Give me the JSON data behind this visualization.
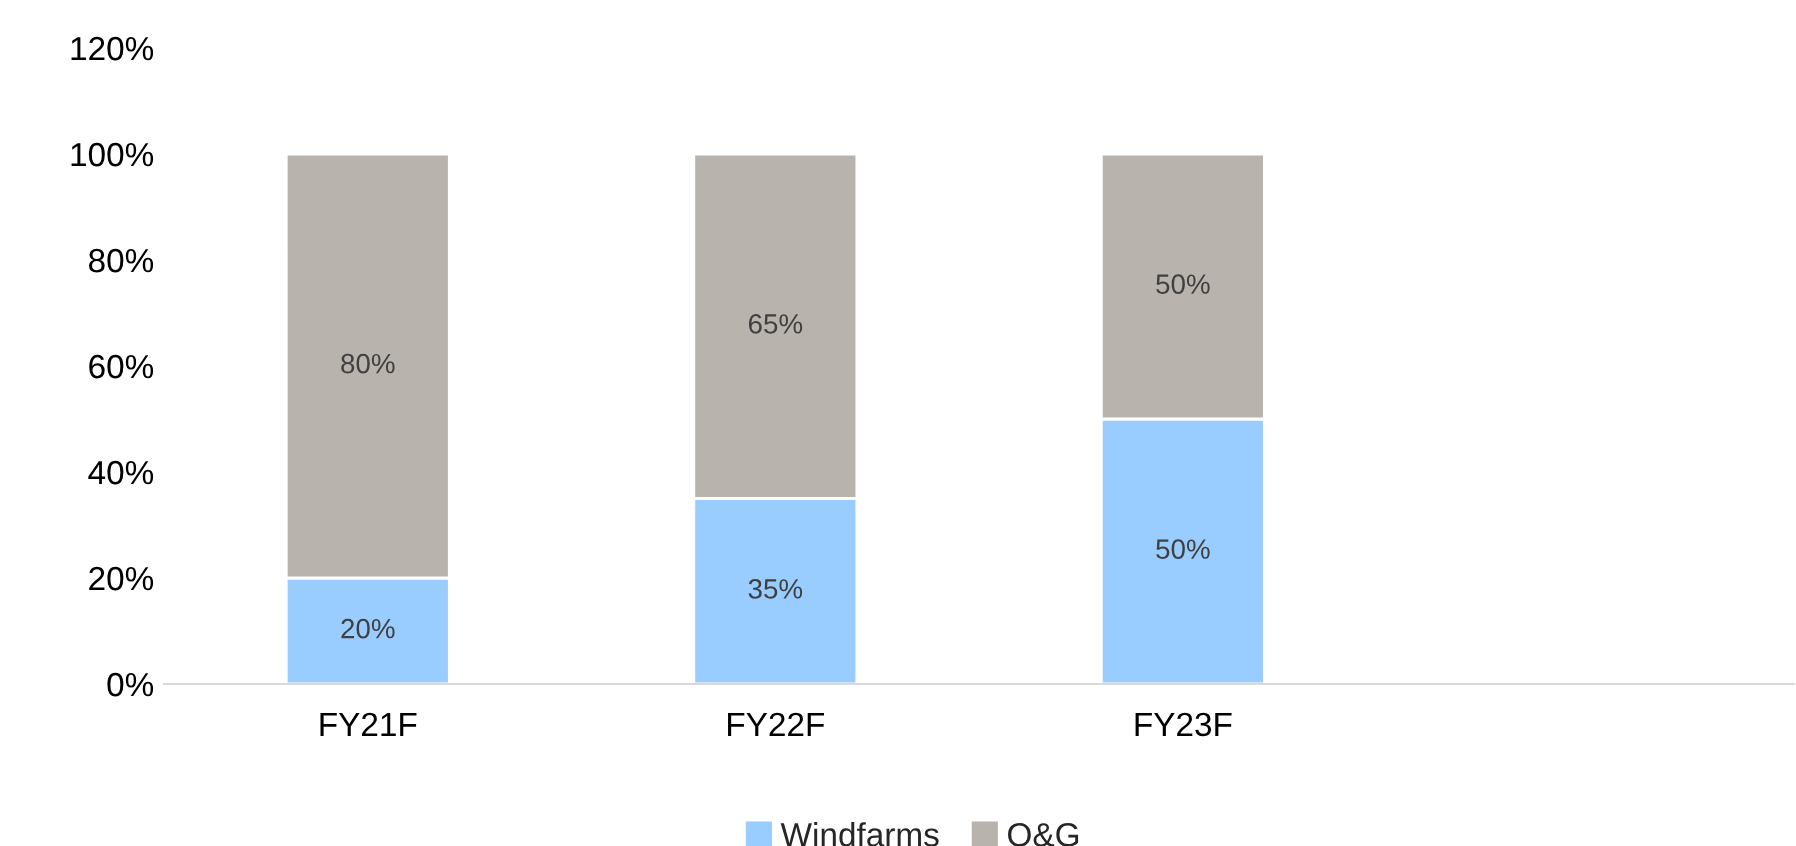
{
  "chart_data": {
    "type": "bar",
    "stacked": true,
    "categories": [
      "FY21F",
      "FY22F",
      "FY23F",
      null
    ],
    "series": [
      {
        "name": "Windfarms",
        "color": "#99ccff",
        "values": [
          20,
          35,
          50,
          null
        ],
        "value_labels": [
          "20%",
          "35%",
          "50%",
          null
        ]
      },
      {
        "name": "O&G",
        "color": "#b8b3ad",
        "values": [
          80,
          65,
          50,
          null
        ],
        "value_labels": [
          "80%",
          "65%",
          "50%",
          null
        ]
      }
    ],
    "ylim": [
      0,
      120
    ],
    "yticks": [
      {
        "value": 0,
        "label": "0%"
      },
      {
        "value": 20,
        "label": "20%"
      },
      {
        "value": 40,
        "label": "40%"
      },
      {
        "value": 60,
        "label": "60%"
      },
      {
        "value": 80,
        "label": "80%"
      },
      {
        "value": 100,
        "label": "100%"
      },
      {
        "value": 120,
        "label": "120%"
      }
    ],
    "grid": false,
    "legend": "bottom"
  }
}
